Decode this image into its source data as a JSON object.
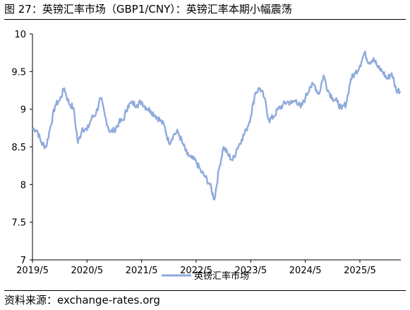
{
  "header": {
    "title": "图 27：英镑汇率市场（GBP1/CNY）：英镑汇率本期小幅震荡"
  },
  "footer": {
    "source": "资料来源：exchange-rates.org"
  },
  "colors": {
    "series": "#8faadc",
    "axis": "#000000",
    "grid": "#bfbfbf"
  },
  "chart_data": {
    "type": "line",
    "title": "",
    "xlabel": "",
    "ylabel": "",
    "ylim": [
      7,
      10
    ],
    "yticks": [
      "7",
      "7.5",
      "8",
      "8.5",
      "9",
      "9.5",
      "10"
    ],
    "xlim": [
      "2019-05",
      "2026-02"
    ],
    "xticks": [
      "2019/5",
      "2020/5",
      "2021/5",
      "2022/5",
      "2023/5",
      "2024/5",
      "2025/5"
    ],
    "grid": false,
    "legend": "bottom",
    "series": [
      {
        "name": "英镑汇率市场",
        "x": [
          "2019-05",
          "2019-06",
          "2019-07",
          "2019-08",
          "2019-09",
          "2019-10",
          "2019-11",
          "2019-12",
          "2020-01",
          "2020-02",
          "2020-03",
          "2020-04",
          "2020-05",
          "2020-06",
          "2020-07",
          "2020-08",
          "2020-09",
          "2020-10",
          "2020-11",
          "2020-12",
          "2021-01",
          "2021-02",
          "2021-03",
          "2021-04",
          "2021-05",
          "2021-06",
          "2021-07",
          "2021-08",
          "2021-09",
          "2021-10",
          "2021-11",
          "2021-12",
          "2022-01",
          "2022-02",
          "2022-03",
          "2022-04",
          "2022-05",
          "2022-06",
          "2022-07",
          "2022-08",
          "2022-09",
          "2022-10",
          "2022-11",
          "2022-12",
          "2023-01",
          "2023-02",
          "2023-03",
          "2023-04",
          "2023-05",
          "2023-06",
          "2023-07",
          "2023-08",
          "2023-09",
          "2023-10",
          "2023-11",
          "2023-12",
          "2024-01",
          "2024-02",
          "2024-03",
          "2024-04",
          "2024-05",
          "2024-06",
          "2024-07",
          "2024-08",
          "2024-09",
          "2024-10",
          "2024-11",
          "2024-12",
          "2025-01",
          "2025-02",
          "2025-03",
          "2025-04",
          "2025-05",
          "2025-06",
          "2025-07",
          "2025-08",
          "2025-09",
          "2025-10",
          "2025-11",
          "2025-12",
          "2026-01"
        ],
        "values": [
          8.75,
          8.72,
          8.55,
          8.5,
          8.78,
          9.05,
          9.12,
          9.28,
          9.08,
          9.02,
          8.55,
          8.75,
          8.72,
          8.88,
          8.95,
          9.15,
          8.9,
          8.7,
          8.72,
          8.82,
          8.86,
          9.05,
          9.08,
          9.06,
          9.1,
          9.02,
          8.98,
          8.92,
          8.86,
          8.78,
          8.55,
          8.66,
          8.7,
          8.55,
          8.4,
          8.35,
          8.3,
          8.18,
          8.1,
          8.0,
          7.8,
          8.2,
          8.5,
          8.4,
          8.32,
          8.48,
          8.6,
          8.72,
          8.9,
          9.22,
          9.28,
          9.15,
          8.85,
          8.9,
          9.0,
          9.05,
          9.1,
          9.08,
          9.12,
          9.02,
          9.15,
          9.3,
          9.32,
          9.2,
          9.45,
          9.25,
          9.15,
          9.1,
          9.0,
          9.08,
          9.4,
          9.48,
          9.58,
          9.75,
          9.62,
          9.68,
          9.55,
          9.5,
          9.4,
          9.48,
          9.25
        ]
      }
    ]
  }
}
